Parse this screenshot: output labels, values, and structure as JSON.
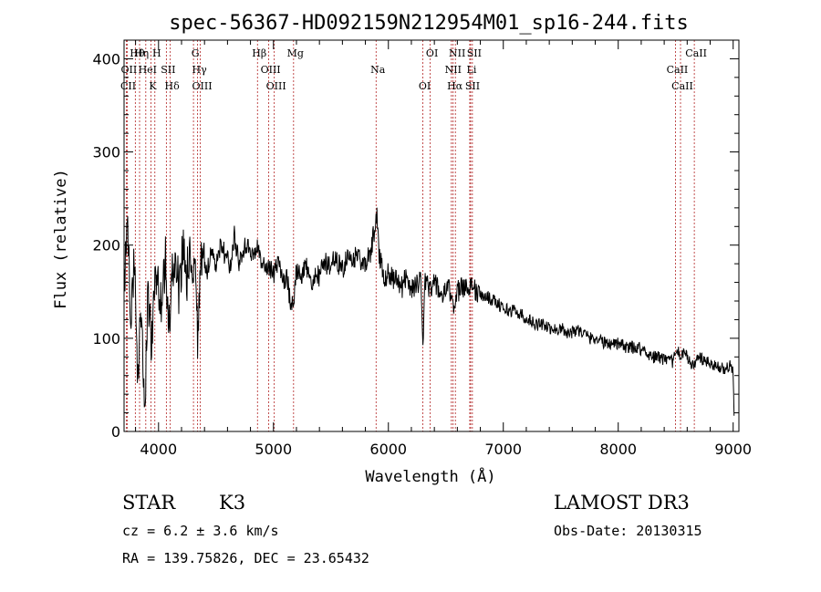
{
  "chart_data": {
    "type": "line",
    "title": "spec-56367-HD092159N212954M01_sp16-244.fits",
    "xlabel": "Wavelength (Å)",
    "ylabel": "Flux (relative)",
    "xlim": [
      3700,
      9050
    ],
    "ylim": [
      0,
      420
    ],
    "x_ticks": [
      4000,
      5000,
      6000,
      7000,
      8000,
      9000
    ],
    "y_ticks": [
      0,
      100,
      200,
      300,
      400
    ],
    "grid": false,
    "series": [
      {
        "name": "spectrum",
        "x": [
          3700,
          3730,
          3760,
          3790,
          3820,
          3850,
          3880,
          3910,
          3940,
          3970,
          4000,
          4030,
          4060,
          4090,
          4120,
          4150,
          4180,
          4210,
          4240,
          4270,
          4300,
          4320,
          4340,
          4360,
          4380,
          4420,
          4460,
          4500,
          4540,
          4580,
          4620,
          4660,
          4700,
          4740,
          4780,
          4820,
          4860,
          4880,
          4920,
          4960,
          5000,
          5040,
          5080,
          5120,
          5150,
          5175,
          5200,
          5240,
          5280,
          5320,
          5360,
          5400,
          5440,
          5480,
          5520,
          5560,
          5600,
          5640,
          5680,
          5720,
          5760,
          5790,
          5820,
          5850,
          5870,
          5890,
          5900,
          5920,
          5940,
          5970,
          6000,
          6040,
          6080,
          6120,
          6160,
          6200,
          6240,
          6280,
          6300,
          6320,
          6360,
          6400,
          6440,
          6480,
          6520,
          6560,
          6570,
          6600,
          6640,
          6680,
          6720,
          6760,
          6800,
          6860,
          6920,
          6980,
          7040,
          7100,
          7160,
          7220,
          7280,
          7340,
          7400,
          7460,
          7520,
          7580,
          7640,
          7700,
          7760,
          7820,
          7880,
          7940,
          8000,
          8060,
          8120,
          8180,
          8240,
          8300,
          8360,
          8420,
          8480,
          8500,
          8540,
          8580,
          8620,
          8660,
          8700,
          8760,
          8820,
          8880,
          8940,
          8980,
          9000,
          9010
        ],
        "values": [
          150,
          230,
          110,
          200,
          60,
          140,
          30,
          150,
          90,
          185,
          150,
          135,
          190,
          110,
          170,
          180,
          150,
          200,
          160,
          190,
          150,
          185,
          90,
          160,
          195,
          170,
          195,
          180,
          200,
          190,
          175,
          210,
          180,
          195,
          200,
          185,
          205,
          190,
          180,
          175,
          170,
          180,
          160,
          165,
          135,
          140,
          175,
          165,
          180,
          155,
          170,
          165,
          185,
          175,
          190,
          180,
          175,
          185,
          180,
          190,
          185,
          175,
          185,
          195,
          210,
          228,
          230,
          190,
          180,
          165,
          170,
          165,
          160,
          155,
          170,
          150,
          160,
          160,
          100,
          160,
          155,
          160,
          150,
          145,
          155,
          140,
          135,
          150,
          155,
          155,
          160,
          150,
          145,
          145,
          140,
          135,
          130,
          130,
          125,
          120,
          115,
          115,
          110,
          110,
          110,
          105,
          110,
          105,
          100,
          100,
          95,
          95,
          95,
          90,
          90,
          90,
          85,
          80,
          80,
          75,
          75,
          90,
          80,
          85,
          75,
          70,
          80,
          75,
          70,
          70,
          65,
          75,
          60,
          5
        ]
      }
    ],
    "annotations": {
      "lines": [
        {
          "label": "Hθ",
          "wavelength": 3798
        },
        {
          "label": "OII",
          "wavelength": 3727
        },
        {
          "label": "CII",
          "wavelength": 3720
        },
        {
          "label": "Hη",
          "wavelength": 3835
        },
        {
          "label": "HeI",
          "wavelength": 3889
        },
        {
          "label": "K",
          "wavelength": 3934
        },
        {
          "label": "H",
          "wavelength": 3968
        },
        {
          "label": "SII",
          "wavelength": 4068
        },
        {
          "label": "Hδ",
          "wavelength": 4102
        },
        {
          "label": "G",
          "wavelength": 4304
        },
        {
          "label": "Hγ",
          "wavelength": 4340
        },
        {
          "label": "OIII",
          "wavelength": 4363
        },
        {
          "label": "Hβ",
          "wavelength": 4861
        },
        {
          "label": "OIII",
          "wavelength": 4959
        },
        {
          "label": "OIII",
          "wavelength": 5007
        },
        {
          "label": "Mg",
          "wavelength": 5175
        },
        {
          "label": "Na",
          "wavelength": 5893
        },
        {
          "label": "OI",
          "wavelength": 6300
        },
        {
          "label": "OI",
          "wavelength": 6364
        },
        {
          "label": "NII",
          "wavelength": 6548
        },
        {
          "label": "Hα",
          "wavelength": 6563
        },
        {
          "label": "NII",
          "wavelength": 6583
        },
        {
          "label": "Li",
          "wavelength": 6708
        },
        {
          "label": "SII",
          "wavelength": 6716
        },
        {
          "label": "SII",
          "wavelength": 6731
        },
        {
          "label": "CaII",
          "wavelength": 8498
        },
        {
          "label": "CaII",
          "wavelength": 8542
        },
        {
          "label": "CaII",
          "wavelength": 8662
        }
      ]
    }
  },
  "info": {
    "class_label": "STAR",
    "subclass": "K3",
    "survey": "LAMOST DR3",
    "cz": "cz = 6.2 ± 3.6 km/s",
    "obs_date": "Obs-Date: 20130315",
    "coords": "RA = 139.75826, DEC =  23.65432"
  },
  "colors": {
    "axis": "#000000",
    "spectrum": "#000000",
    "line_marker": "#b22222"
  }
}
